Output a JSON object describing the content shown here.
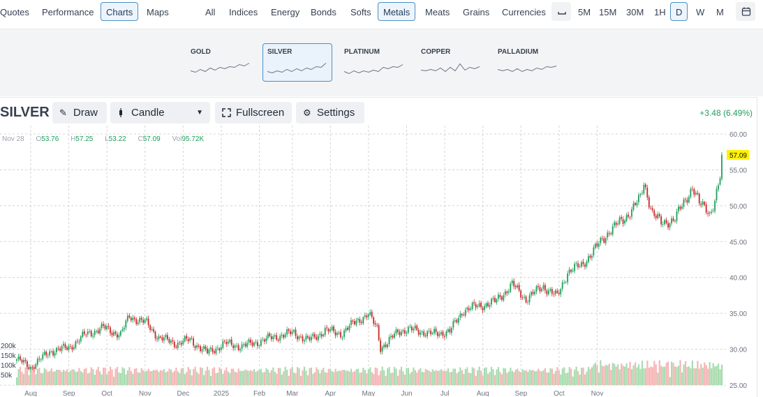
{
  "nav": {
    "tabs": [
      {
        "label": "Quotes",
        "active": false
      },
      {
        "label": "Performance",
        "active": false
      },
      {
        "label": "Charts",
        "active": true
      },
      {
        "label": "Maps",
        "active": false
      }
    ],
    "categories": [
      {
        "label": "All",
        "active": false
      },
      {
        "label": "Indices",
        "active": false
      },
      {
        "label": "Energy",
        "active": false
      },
      {
        "label": "Bonds",
        "active": false
      },
      {
        "label": "Softs",
        "active": false
      },
      {
        "label": "Metals",
        "active": true
      },
      {
        "label": "Meats",
        "active": false
      },
      {
        "label": "Grains",
        "active": false
      },
      {
        "label": "Currencies",
        "active": false
      }
    ],
    "timeframes": [
      {
        "label": "5M",
        "active": false
      },
      {
        "label": "15M",
        "active": false
      },
      {
        "label": "30M",
        "active": false
      },
      {
        "label": "1H",
        "active": false
      },
      {
        "label": "D",
        "active": true
      },
      {
        "label": "W",
        "active": false
      },
      {
        "label": "M",
        "active": false
      }
    ]
  },
  "metals": [
    {
      "label": "GOLD",
      "active": false
    },
    {
      "label": "SILVER",
      "active": true
    },
    {
      "label": "PLATINUM",
      "active": false
    },
    {
      "label": "COPPER",
      "active": false
    },
    {
      "label": "PALLADIUM",
      "active": false
    }
  ],
  "toolbar": {
    "symbol": "SILVER",
    "draw_label": "Draw",
    "chart_type_label": "Candle",
    "fullscreen_label": "Fullscreen",
    "settings_label": "Settings",
    "change_text": "+3.48 (6.49%)"
  },
  "ohlc": {
    "date": "Nov 28",
    "open_label": "O",
    "open": "53.76",
    "high_label": "H",
    "high": "57.25",
    "low_label": "L",
    "low": "53.22",
    "close_label": "C",
    "close": "57.09",
    "vol_label": "Vol",
    "vol": "95.72K"
  },
  "colors": {
    "up": "#1e9e5a",
    "down": "#c62828",
    "vol_up": "#a7dcae",
    "vol_down": "#f5b5b5",
    "last_price_bg": "#fff200",
    "grid": "#d4d4d8"
  },
  "chart_data": {
    "type": "candlestick",
    "title": "SILVER",
    "ylim": [
      25,
      60
    ],
    "y_ticks": [
      "60.00",
      "55.00",
      "50.00",
      "45.00",
      "40.00",
      "35.00",
      "30.00",
      "25.00"
    ],
    "last_price": "57.09",
    "x_labels": [
      "Aug",
      "Sep",
      "Oct",
      "Nov",
      "Dec",
      "2025",
      "Feb",
      "Mar",
      "Apr",
      "May",
      "Jun",
      "Jul",
      "Aug",
      "Sep",
      "Oct",
      "Nov"
    ],
    "volume_ticks": [
      "200k",
      "150k",
      "100k",
      "50k"
    ],
    "volume_max": 250000,
    "grid": true,
    "close_anchors": [
      [
        0,
        28.6
      ],
      [
        8,
        27.5
      ],
      [
        20,
        29.8
      ],
      [
        30,
        30.2
      ],
      [
        40,
        32.1
      ],
      [
        50,
        33.0
      ],
      [
        60,
        32.0
      ],
      [
        65,
        34.6
      ],
      [
        75,
        33.6
      ],
      [
        82,
        31.6
      ],
      [
        92,
        30.8
      ],
      [
        100,
        31.3
      ],
      [
        110,
        29.5
      ],
      [
        120,
        30.8
      ],
      [
        130,
        30.4
      ],
      [
        140,
        31.1
      ],
      [
        150,
        31.8
      ],
      [
        160,
        32.3
      ],
      [
        168,
        31.2
      ],
      [
        178,
        32.6
      ],
      [
        188,
        32.2
      ],
      [
        196,
        34.0
      ],
      [
        203,
        34.8
      ],
      [
        208,
        33.0
      ],
      [
        210,
        30.3
      ],
      [
        214,
        30.8
      ],
      [
        220,
        32.6
      ],
      [
        230,
        32.7
      ],
      [
        240,
        32.1
      ],
      [
        250,
        32.5
      ],
      [
        258,
        35.5
      ],
      [
        268,
        36.1
      ],
      [
        276,
        36.6
      ],
      [
        286,
        39.0
      ],
      [
        294,
        37.0
      ],
      [
        304,
        38.8
      ],
      [
        312,
        37.3
      ],
      [
        318,
        40.8
      ],
      [
        326,
        41.7
      ],
      [
        334,
        44.0
      ],
      [
        342,
        46.5
      ],
      [
        350,
        48.0
      ],
      [
        355,
        49.5
      ],
      [
        360,
        51.0
      ],
      [
        362,
        53.2
      ],
      [
        367,
        49.0
      ],
      [
        372,
        47.5
      ],
      [
        380,
        48.2
      ],
      [
        386,
        50.8
      ],
      [
        390,
        52.7
      ],
      [
        394,
        50.2
      ],
      [
        398,
        49.7
      ],
      [
        400,
        49.0
      ],
      [
        403,
        50.6
      ],
      [
        406,
        53.8
      ],
      [
        407,
        57.1
      ]
    ]
  }
}
